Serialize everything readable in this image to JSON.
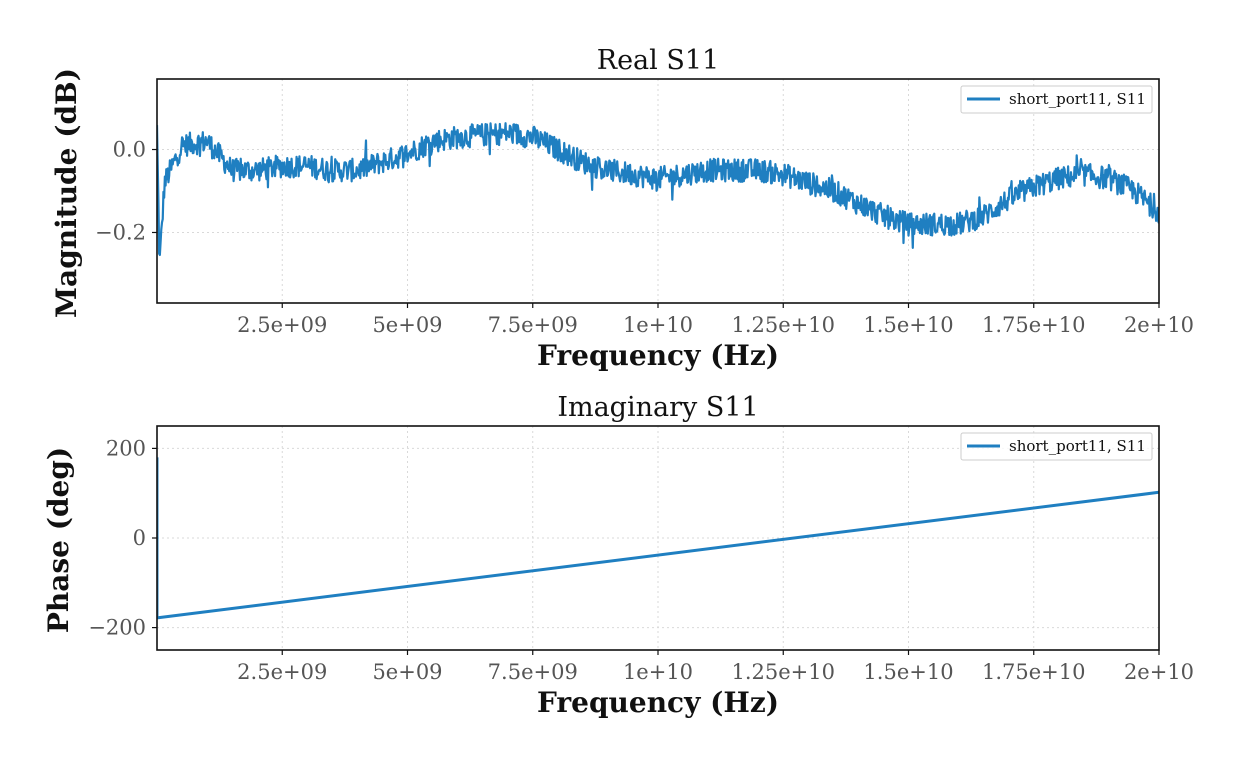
{
  "chart_data": [
    {
      "type": "line",
      "title": "Real S11",
      "xlabel": "Frequency (Hz)",
      "ylabel": "Magnitude (dB)",
      "xlim": [
        0,
        20000000000
      ],
      "ylim": [
        -0.37,
        0.17
      ],
      "xticks": [
        2500000000,
        5000000000,
        7500000000,
        10000000000,
        12500000000,
        15000000000,
        17500000000,
        20000000000
      ],
      "xtick_labels": [
        "2.5e+09",
        "5e+09",
        "7.5e+09",
        "1e+10",
        "1.25e+10",
        "1.5e+10",
        "1.75e+10",
        "2e+10"
      ],
      "yticks": [
        -0.2,
        0.0
      ],
      "ytick_labels": [
        "−0.2",
        "0.0"
      ],
      "grid": true,
      "legend_position": "top-right",
      "color": "#1f7fc1",
      "series": [
        {
          "name": "short_port11, S11",
          "noise_amplitude": 0.028,
          "x": [
            0,
            50000000,
            150000000,
            500000000,
            1000000000,
            1500000000,
            2000000000,
            2500000000,
            3000000000,
            3500000000,
            4000000000,
            4500000000,
            5000000000,
            5500000000,
            6000000000,
            6500000000,
            7000000000,
            7500000000,
            8000000000,
            8500000000,
            9000000000,
            9500000000,
            10000000000,
            10500000000,
            11000000000,
            11500000000,
            12000000000,
            12500000000,
            13000000000,
            13500000000,
            14000000000,
            14500000000,
            15000000000,
            15500000000,
            16000000000,
            16500000000,
            17000000000,
            17500000000,
            18000000000,
            18500000000,
            19000000000,
            19500000000,
            20000000000
          ],
          "values": [
            0.05,
            -0.28,
            -0.08,
            0.01,
            0.02,
            -0.05,
            -0.05,
            -0.04,
            -0.04,
            -0.05,
            -0.05,
            -0.03,
            -0.01,
            0.02,
            0.03,
            0.035,
            0.04,
            0.03,
            0.0,
            -0.03,
            -0.05,
            -0.06,
            -0.07,
            -0.06,
            -0.05,
            -0.05,
            -0.05,
            -0.06,
            -0.08,
            -0.1,
            -0.13,
            -0.16,
            -0.18,
            -0.18,
            -0.18,
            -0.16,
            -0.12,
            -0.09,
            -0.07,
            -0.06,
            -0.07,
            -0.1,
            -0.15
          ]
        }
      ]
    },
    {
      "type": "line",
      "title": "Imaginary S11",
      "xlabel": "Frequency (Hz)",
      "ylabel": "Phase (deg)",
      "xlim": [
        0,
        20000000000
      ],
      "ylim": [
        -250,
        250
      ],
      "xticks": [
        2500000000,
        5000000000,
        7500000000,
        10000000000,
        12500000000,
        15000000000,
        17500000000,
        20000000000
      ],
      "xtick_labels": [
        "2.5e+09",
        "5e+09",
        "7.5e+09",
        "1e+10",
        "1.25e+10",
        "1.5e+10",
        "1.75e+10",
        "2e+10"
      ],
      "yticks": [
        -200,
        0,
        200
      ],
      "ytick_labels": [
        "−200",
        "0",
        "200"
      ],
      "grid": true,
      "legend_position": "top-right",
      "color": "#1f7fc1",
      "series": [
        {
          "name": "short_port11, S11",
          "x": [
            0,
            0,
            20000000,
            20000000000
          ],
          "values": [
            180,
            -178,
            -178,
            102
          ]
        }
      ]
    }
  ]
}
